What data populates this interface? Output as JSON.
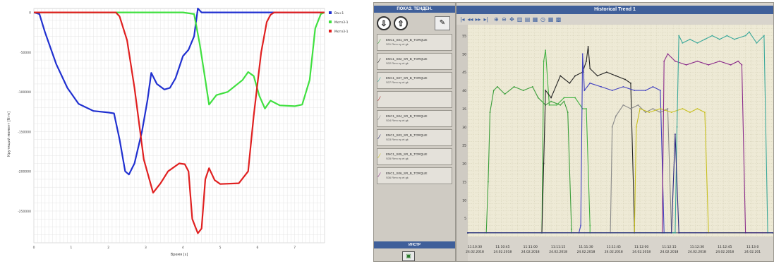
{
  "left_chart": {
    "ylabel": "Крутящий момент [N·m]",
    "xlabel": "Время [s]",
    "y_ticks": [
      "0",
      "-50000",
      "-100000",
      "-150000",
      "-200000",
      "-250000"
    ],
    "x_ticks": [
      "0",
      "1",
      "2",
      "3",
      "4",
      "5",
      "6",
      "7"
    ],
    "legend": [
      "Ван-1",
      "Мотл3-1",
      "Мотл3-1"
    ]
  },
  "right_panel": {
    "sidebar_title": "ПОКАЗ. ТЕНДЕН.",
    "up_arrow": "⇩",
    "down_arrow": "⇧",
    "pen_icon": "✎",
    "tags": [
      {
        "name": "ENC1_S01_SR_B_TORQUE",
        "sub": "S01 Rmn ey et gk"
      },
      {
        "name": "ENC1_S02_SR_B_TORQUE",
        "sub": "S02 Rmn ey et gk"
      },
      {
        "name": "ENC1_S07_SR_B_TORQUE",
        "sub": "S07 Rmn ey et gk"
      },
      {
        "name": "",
        "sub": ""
      },
      {
        "name": "ENC1_S04_SR_B_TORQUE",
        "sub": "S04 Rmn ey et gk"
      },
      {
        "name": "ENC1_S03_SR_B_TORQUE",
        "sub": "S03 Rmn ey et gk"
      },
      {
        "name": "ENC1_S05_SR_B_TORQUE",
        "sub": "S05 Rmn ey et gk"
      },
      {
        "name": "ENC1_S06_SR_B_TORQUE",
        "sub": "S06 Rmn ey et gk"
      }
    ],
    "tag_colors": [
      "#3a9e3a",
      "#222222",
      "#3aa89a",
      "#aa2a2a",
      "#8a8a8a",
      "#22226a",
      "#c8c020",
      "#8a2a8a"
    ],
    "inst_label": "ИНСТР",
    "trend_title": "Historical Trend 1",
    "y_ticks": [
      "55",
      "50",
      "45",
      "40",
      "35",
      "30",
      "25",
      "20",
      "15",
      "10",
      "5"
    ],
    "x_ticks": [
      {
        "time": "11:10:30",
        "date": "24.02.2018"
      },
      {
        "time": "11:10:45",
        "date": "24.02.2018"
      },
      {
        "time": "11:11:00",
        "date": "24.02.2018"
      },
      {
        "time": "11:11:15",
        "date": "24.02.2018"
      },
      {
        "time": "11:11:30",
        "date": "24.02.2018"
      },
      {
        "time": "11:11:45",
        "date": "24.02.2018"
      },
      {
        "time": "11:12:00",
        "date": "24.02.2018"
      },
      {
        "time": "11:12:15",
        "date": "24.02.2018"
      },
      {
        "time": "11:12:30",
        "date": "24.02.2018"
      },
      {
        "time": "11:12:45",
        "date": "24.02.2018"
      },
      {
        "time": "11:13:0",
        "date": "24.02.201"
      }
    ]
  },
  "chart_data": [
    {
      "type": "line",
      "xlabel": "Время [s]",
      "ylabel": "Крутящий момент [N·m]",
      "xlim": [
        0,
        7.8
      ],
      "ylim": [
        -290000,
        5000
      ],
      "grid": true,
      "legend_position": "right",
      "series": [
        {
          "name": "Ван-1",
          "color": "#2030d0",
          "points": [
            [
              0,
              0
            ],
            [
              0.15,
              -2000
            ],
            [
              0.3,
              -25000
            ],
            [
              0.6,
              -65000
            ],
            [
              0.9,
              -95000
            ],
            [
              1.2,
              -115000
            ],
            [
              1.6,
              -124000
            ],
            [
              2.0,
              -126000
            ],
            [
              2.15,
              -127000
            ],
            [
              2.3,
              -160000
            ],
            [
              2.45,
              -200000
            ],
            [
              2.55,
              -204000
            ],
            [
              2.7,
              -190000
            ],
            [
              2.9,
              -150000
            ],
            [
              3.05,
              -110000
            ],
            [
              3.15,
              -76000
            ],
            [
              3.3,
              -90000
            ],
            [
              3.5,
              -97000
            ],
            [
              3.65,
              -95000
            ],
            [
              3.8,
              -83000
            ],
            [
              4.0,
              -55000
            ],
            [
              4.15,
              -47000
            ],
            [
              4.3,
              -30000
            ],
            [
              4.4,
              5000
            ],
            [
              4.5,
              0
            ],
            [
              4.8,
              0
            ],
            [
              7.8,
              0
            ]
          ]
        },
        {
          "name": "Мотл3-1",
          "color": "#40e040",
          "points": [
            [
              0,
              0
            ],
            [
              2.1,
              0
            ],
            [
              4.0,
              0
            ],
            [
              4.3,
              -2000
            ],
            [
              4.45,
              -40000
            ],
            [
              4.6,
              -85000
            ],
            [
              4.7,
              -116000
            ],
            [
              4.9,
              -104000
            ],
            [
              5.2,
              -100000
            ],
            [
              5.6,
              -85000
            ],
            [
              5.75,
              -75000
            ],
            [
              5.9,
              -80000
            ],
            [
              6.05,
              -105000
            ],
            [
              6.2,
              -121000
            ],
            [
              6.35,
              -111000
            ],
            [
              6.6,
              -117000
            ],
            [
              7.0,
              -118000
            ],
            [
              7.2,
              -116000
            ],
            [
              7.4,
              -85000
            ],
            [
              7.55,
              -20000
            ],
            [
              7.7,
              -2000
            ],
            [
              7.8,
              0
            ]
          ]
        },
        {
          "name": "Мотл3-1",
          "color": "#e02020",
          "points": [
            [
              0,
              0
            ],
            [
              2.2,
              0
            ],
            [
              2.3,
              -5000
            ],
            [
              2.5,
              -35000
            ],
            [
              2.7,
              -95000
            ],
            [
              2.95,
              -185000
            ],
            [
              3.2,
              -227000
            ],
            [
              3.4,
              -215000
            ],
            [
              3.6,
              -200000
            ],
            [
              3.9,
              -190000
            ],
            [
              4.05,
              -191000
            ],
            [
              4.15,
              -200000
            ],
            [
              4.25,
              -260000
            ],
            [
              4.4,
              -278000
            ],
            [
              4.5,
              -272000
            ],
            [
              4.6,
              -210000
            ],
            [
              4.7,
              -196000
            ],
            [
              4.85,
              -211000
            ],
            [
              5.0,
              -216000
            ],
            [
              5.5,
              -215000
            ],
            [
              5.75,
              -200000
            ],
            [
              5.9,
              -130000
            ],
            [
              6.1,
              -50000
            ],
            [
              6.25,
              -12000
            ],
            [
              6.35,
              -3000
            ],
            [
              6.45,
              0
            ],
            [
              7.8,
              0
            ]
          ]
        }
      ]
    },
    {
      "type": "line",
      "title": "Historical Trend 1",
      "xlim": [
        0,
        165
      ],
      "ylim": [
        0,
        58
      ],
      "grid": true,
      "series": [
        {
          "color": "#3a9e3a",
          "points": [
            [
              0,
              1
            ],
            [
              10,
              1
            ],
            [
              11,
              15
            ],
            [
              12,
              34
            ],
            [
              14,
              40
            ],
            [
              16,
              41
            ],
            [
              20,
              39
            ],
            [
              25,
              41
            ],
            [
              30,
              40
            ],
            [
              35,
              41
            ],
            [
              38,
              38
            ],
            [
              42,
              36
            ],
            [
              45,
              37
            ],
            [
              50,
              36
            ],
            [
              52,
              37
            ],
            [
              54,
              34
            ],
            [
              56,
              2
            ],
            [
              56,
              1
            ],
            [
              165,
              1
            ]
          ]
        },
        {
          "color": "#40b040",
          "points": [
            [
              0,
              1
            ],
            [
              40,
              1
            ],
            [
              41,
              48
            ],
            [
              42,
              51
            ],
            [
              44,
              36
            ],
            [
              48,
              36
            ],
            [
              52,
              38
            ],
            [
              58,
              38
            ],
            [
              62,
              35
            ],
            [
              64,
              35
            ],
            [
              66,
              3
            ],
            [
              66,
              1
            ],
            [
              165,
              1
            ]
          ]
        },
        {
          "color": "#222222",
          "points": [
            [
              0,
              1
            ],
            [
              40,
              1
            ],
            [
              41,
              20
            ],
            [
              42,
              40
            ],
            [
              45,
              38
            ],
            [
              50,
              44
            ],
            [
              55,
              42
            ],
            [
              58,
              44
            ],
            [
              62,
              45
            ],
            [
              64,
              48
            ],
            [
              65,
              52
            ],
            [
              66,
              46
            ],
            [
              70,
              44
            ],
            [
              75,
              45
            ],
            [
              80,
              44
            ],
            [
              85,
              43
            ],
            [
              88,
              42
            ],
            [
              90,
              3
            ],
            [
              90,
              1
            ],
            [
              165,
              1
            ]
          ]
        },
        {
          "color": "#4040c0",
          "points": [
            [
              0,
              1
            ],
            [
              60,
              1
            ],
            [
              61,
              3
            ],
            [
              62,
              50
            ],
            [
              63,
              40
            ],
            [
              66,
              42
            ],
            [
              72,
              41
            ],
            [
              78,
              40
            ],
            [
              84,
              41
            ],
            [
              90,
              40
            ],
            [
              96,
              40
            ],
            [
              100,
              41
            ],
            [
              104,
              40
            ],
            [
              106,
              1
            ],
            [
              165,
              1
            ]
          ]
        },
        {
          "color": "#8a8a8a",
          "points": [
            [
              0,
              1
            ],
            [
              77,
              1
            ],
            [
              78,
              30
            ],
            [
              80,
              33
            ],
            [
              84,
              36
            ],
            [
              88,
              35
            ],
            [
              92,
              36
            ],
            [
              96,
              34
            ],
            [
              100,
              35
            ],
            [
              104,
              34
            ],
            [
              108,
              35
            ],
            [
              110,
              1
            ],
            [
              165,
              1
            ]
          ]
        },
        {
          "color": "#c8c020",
          "points": [
            [
              0,
              1
            ],
            [
              90,
              1
            ],
            [
              91,
              30
            ],
            [
              93,
              35
            ],
            [
              98,
              34
            ],
            [
              104,
              35
            ],
            [
              110,
              34
            ],
            [
              116,
              35
            ],
            [
              120,
              34
            ],
            [
              124,
              35
            ],
            [
              128,
              34
            ],
            [
              130,
              1
            ],
            [
              165,
              1
            ]
          ]
        },
        {
          "color": "#8a2a8a",
          "points": [
            [
              0,
              1
            ],
            [
              105,
              1
            ],
            [
              106,
              48
            ],
            [
              108,
              50
            ],
            [
              112,
              48
            ],
            [
              118,
              47
            ],
            [
              124,
              48
            ],
            [
              130,
              47
            ],
            [
              136,
              48
            ],
            [
              142,
              47
            ],
            [
              146,
              48
            ],
            [
              148,
              47
            ],
            [
              150,
              1
            ],
            [
              165,
              1
            ]
          ]
        },
        {
          "color": "#3aa89a",
          "points": [
            [
              0,
              1
            ],
            [
              112,
              1
            ],
            [
              113,
              30
            ],
            [
              114,
              55
            ],
            [
              116,
              53
            ],
            [
              120,
              54
            ],
            [
              124,
              53
            ],
            [
              128,
              54
            ],
            [
              132,
              55
            ],
            [
              136,
              54
            ],
            [
              140,
              55
            ],
            [
              144,
              54
            ],
            [
              150,
              55
            ],
            [
              152,
              56
            ],
            [
              156,
              53
            ],
            [
              160,
              55
            ],
            [
              162,
              1
            ],
            [
              165,
              1
            ]
          ]
        },
        {
          "color": "#2a2a80",
          "points": [
            [
              0,
              1
            ],
            [
              110,
              1
            ],
            [
              112,
              28
            ],
            [
              114,
              1
            ],
            [
              165,
              1
            ]
          ]
        }
      ]
    }
  ]
}
